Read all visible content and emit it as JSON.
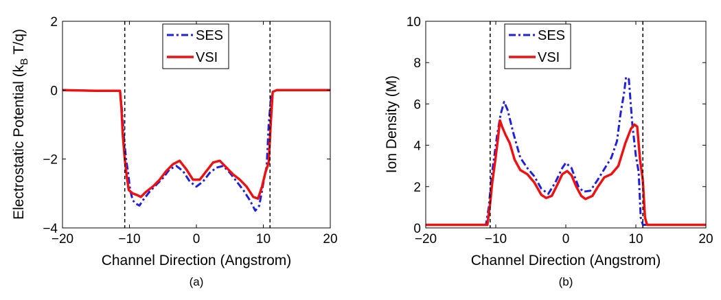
{
  "figure": {
    "caption_a": "(a)",
    "caption_b": "(b)"
  },
  "colors": {
    "SES": "#1f1fe0",
    "VSI": "#ee1111",
    "axes": "#000000",
    "marker": "#000000"
  },
  "chart_data": [
    {
      "type": "line",
      "title": "",
      "caption": "(a)",
      "xlabel": "Channel Direction (Angstrom)",
      "ylabel_prefix": "Electrostatic Potential (k",
      "ylabel_sub": "B",
      "ylabel_suffix": " T/q)",
      "xlim": [
        -20,
        20
      ],
      "ylim": [
        -4,
        2
      ],
      "xticks": [
        -20,
        -10,
        0,
        10,
        20
      ],
      "xtick_labels": [
        "−20",
        "−10",
        "0",
        "10",
        "20"
      ],
      "yticks": [
        -4,
        -2,
        0,
        2
      ],
      "ytick_labels": [
        "−4",
        "−2",
        "0",
        "2"
      ],
      "grid": false,
      "legend": "top-center",
      "vlines": [
        -10.7,
        11
      ],
      "series": [
        {
          "name": "SES",
          "style": "dashdot",
          "points": [
            [
              -20,
              0
            ],
            [
              -15,
              -0.02
            ],
            [
              -11.4,
              -0.02
            ],
            [
              -11.1,
              -0.6
            ],
            [
              -10.8,
              -1.4
            ],
            [
              -10.5,
              -2.0
            ],
            [
              -10.2,
              -2.4
            ],
            [
              -9.9,
              -2.9
            ],
            [
              -9.5,
              -3.2
            ],
            [
              -9.0,
              -3.3
            ],
            [
              -8.5,
              -3.35
            ],
            [
              -8.0,
              -3.2
            ],
            [
              -7.0,
              -2.95
            ],
            [
              -6.0,
              -2.75
            ],
            [
              -5.0,
              -2.55
            ],
            [
              -4.0,
              -2.3
            ],
            [
              -3.0,
              -2.2
            ],
            [
              -2.0,
              -2.35
            ],
            [
              -1.0,
              -2.65
            ],
            [
              0,
              -2.8
            ],
            [
              1.0,
              -2.65
            ],
            [
              2.0,
              -2.4
            ],
            [
              3.0,
              -2.25
            ],
            [
              4.0,
              -2.2
            ],
            [
              5.0,
              -2.4
            ],
            [
              6.0,
              -2.65
            ],
            [
              7.0,
              -2.9
            ],
            [
              8.0,
              -3.2
            ],
            [
              8.8,
              -3.5
            ],
            [
              9.4,
              -3.35
            ],
            [
              10.0,
              -2.7
            ],
            [
              10.5,
              -2.2
            ],
            [
              10.8,
              -1.0
            ],
            [
              11.1,
              -0.3
            ],
            [
              11.4,
              -0.05
            ],
            [
              12,
              0
            ],
            [
              15,
              0
            ],
            [
              20,
              0
            ]
          ]
        },
        {
          "name": "VSI",
          "style": "solid",
          "points": [
            [
              -20,
              0
            ],
            [
              -15,
              -0.02
            ],
            [
              -11.4,
              -0.02
            ],
            [
              -11.2,
              -0.5
            ],
            [
              -11.0,
              -1.3
            ],
            [
              -10.7,
              -2.0
            ],
            [
              -10.4,
              -2.5
            ],
            [
              -10.1,
              -2.9
            ],
            [
              -9.5,
              -3.0
            ],
            [
              -8.8,
              -3.05
            ],
            [
              -8.3,
              -3.1
            ],
            [
              -7.5,
              -2.95
            ],
            [
              -6.5,
              -2.8
            ],
            [
              -5.5,
              -2.6
            ],
            [
              -4.5,
              -2.35
            ],
            [
              -3.5,
              -2.15
            ],
            [
              -2.5,
              -2.05
            ],
            [
              -1.5,
              -2.3
            ],
            [
              -0.5,
              -2.6
            ],
            [
              0.5,
              -2.6
            ],
            [
              1.5,
              -2.35
            ],
            [
              2.5,
              -2.1
            ],
            [
              3.5,
              -2.05
            ],
            [
              4.5,
              -2.25
            ],
            [
              5.5,
              -2.45
            ],
            [
              6.5,
              -2.6
            ],
            [
              7.5,
              -2.8
            ],
            [
              8.5,
              -3.1
            ],
            [
              9.2,
              -3.15
            ],
            [
              9.8,
              -2.8
            ],
            [
              10.3,
              -2.4
            ],
            [
              10.8,
              -2.1
            ],
            [
              11.1,
              -1.0
            ],
            [
              11.4,
              -0.05
            ],
            [
              12,
              0
            ],
            [
              15,
              0
            ],
            [
              20,
              0
            ]
          ]
        }
      ]
    },
    {
      "type": "line",
      "title": "",
      "caption": "(b)",
      "xlabel": "Channel Direction (Angstrom)",
      "ylabel": "Ion Density (M)",
      "xlim": [
        -20,
        20
      ],
      "ylim": [
        0,
        10
      ],
      "xticks": [
        -20,
        -10,
        0,
        10,
        20
      ],
      "xtick_labels": [
        "−20",
        "−10",
        "0",
        "10",
        "20"
      ],
      "yticks": [
        0,
        2,
        4,
        6,
        8,
        10
      ],
      "ytick_labels": [
        "0",
        "2",
        "4",
        "6",
        "8",
        "10"
      ],
      "grid": false,
      "legend": "top-center",
      "vlines": [
        -10.8,
        11
      ],
      "series": [
        {
          "name": "SES",
          "style": "dashdot",
          "points": [
            [
              -20,
              0.15
            ],
            [
              -12,
              0.15
            ],
            [
              -11.4,
              0.15
            ],
            [
              -11.0,
              1.0
            ],
            [
              -10.6,
              2.5
            ],
            [
              -10.2,
              3.5
            ],
            [
              -9.8,
              4.5
            ],
            [
              -9.3,
              5.5
            ],
            [
              -8.8,
              6.1
            ],
            [
              -8.3,
              5.7
            ],
            [
              -7.5,
              4.6
            ],
            [
              -6.5,
              3.4
            ],
            [
              -5.5,
              2.9
            ],
            [
              -4.5,
              2.5
            ],
            [
              -3.5,
              1.9
            ],
            [
              -2.5,
              1.65
            ],
            [
              -1.5,
              2.2
            ],
            [
              -0.5,
              2.9
            ],
            [
              0,
              3.15
            ],
            [
              0.8,
              2.9
            ],
            [
              1.8,
              2.0
            ],
            [
              2.5,
              1.75
            ],
            [
              3.5,
              1.8
            ],
            [
              4.5,
              2.3
            ],
            [
              5.5,
              2.85
            ],
            [
              6.5,
              3.4
            ],
            [
              7.3,
              4.2
            ],
            [
              7.8,
              5.5
            ],
            [
              8.3,
              6.5
            ],
            [
              8.6,
              7.3
            ],
            [
              9.0,
              7.2
            ],
            [
              9.5,
              5.0
            ],
            [
              10.0,
              3.5
            ],
            [
              10.4,
              2.7
            ],
            [
              10.7,
              0.5
            ],
            [
              11.0,
              0.15
            ],
            [
              20,
              0.15
            ]
          ]
        },
        {
          "name": "VSI",
          "style": "solid",
          "points": [
            [
              -20,
              0.15
            ],
            [
              -12,
              0.15
            ],
            [
              -11.2,
              0.15
            ],
            [
              -10.8,
              1.2
            ],
            [
              -10.5,
              2.2
            ],
            [
              -10.1,
              3.2
            ],
            [
              -9.7,
              4.3
            ],
            [
              -9.4,
              5.2
            ],
            [
              -9.1,
              4.9
            ],
            [
              -8.6,
              4.5
            ],
            [
              -8.0,
              4.1
            ],
            [
              -7.3,
              3.3
            ],
            [
              -6.5,
              2.8
            ],
            [
              -5.5,
              2.6
            ],
            [
              -4.5,
              2.2
            ],
            [
              -3.5,
              1.6
            ],
            [
              -2.8,
              1.45
            ],
            [
              -2.0,
              1.55
            ],
            [
              -1.2,
              2.1
            ],
            [
              -0.5,
              2.6
            ],
            [
              0.2,
              2.75
            ],
            [
              0.8,
              2.55
            ],
            [
              1.5,
              2.0
            ],
            [
              2.2,
              1.55
            ],
            [
              2.8,
              1.4
            ],
            [
              3.8,
              1.55
            ],
            [
              4.5,
              1.95
            ],
            [
              5.5,
              2.45
            ],
            [
              6.5,
              2.6
            ],
            [
              7.5,
              3.0
            ],
            [
              8.5,
              4.1
            ],
            [
              9.3,
              4.8
            ],
            [
              9.8,
              5.0
            ],
            [
              10.2,
              4.9
            ],
            [
              10.6,
              3.3
            ],
            [
              11.0,
              2.3
            ],
            [
              11.3,
              0.5
            ],
            [
              11.6,
              0.15
            ],
            [
              20,
              0.15
            ]
          ]
        }
      ]
    }
  ]
}
